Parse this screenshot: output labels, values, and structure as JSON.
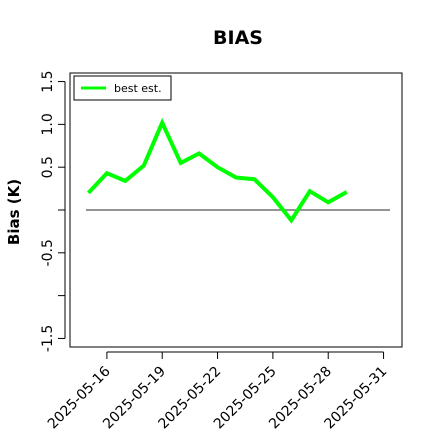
{
  "chart_data": {
    "type": "line",
    "title": "BIAS",
    "xlabel": "",
    "ylabel": "Bias (K)",
    "x": [
      "2025-05-15",
      "2025-05-16",
      "2025-05-17",
      "2025-05-18",
      "2025-05-19",
      "2025-05-20",
      "2025-05-21",
      "2025-05-22",
      "2025-05-23",
      "2025-05-24",
      "2025-05-25",
      "2025-05-26",
      "2025-05-27",
      "2025-05-28",
      "2025-05-29"
    ],
    "series": [
      {
        "name": "best est.",
        "color": "#00ff00",
        "values": [
          0.2,
          0.43,
          0.34,
          0.52,
          1.02,
          0.55,
          0.66,
          0.5,
          0.38,
          0.36,
          0.15,
          -0.12,
          0.22,
          0.09,
          0.21
        ]
      }
    ],
    "reference_line": {
      "y": 0,
      "color": "#555555"
    },
    "xlim": [
      "2025-05-14",
      "2025-06-01"
    ],
    "ylim": [
      -1.6,
      1.6
    ],
    "xticks": [
      "2025-05-16",
      "2025-05-19",
      "2025-05-22",
      "2025-05-25",
      "2025-05-28",
      "2025-05-31"
    ],
    "yticks": [
      -1.5,
      -1.0,
      -0.5,
      0.0,
      0.5,
      1.0,
      1.5
    ],
    "ytick_labels": [
      "-1.5",
      "",
      "-0.5",
      "",
      "0.5",
      "1.0",
      "1.5"
    ],
    "legend_position": "top-left",
    "grid": false
  }
}
